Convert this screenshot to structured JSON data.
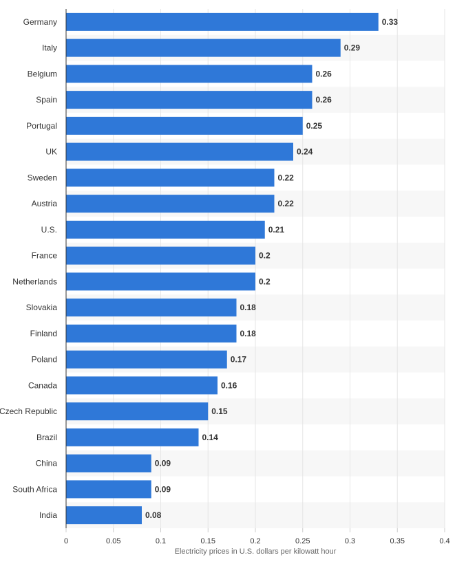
{
  "chart_data": {
    "type": "bar",
    "orientation": "horizontal",
    "categories": [
      "Germany",
      "Italy",
      "Belgium",
      "Spain",
      "Portugal",
      "UK",
      "Sweden",
      "Austria",
      "U.S.",
      "France",
      "Netherlands",
      "Slovakia",
      "Finland",
      "Poland",
      "Canada",
      "Czech Republic",
      "Brazil",
      "China",
      "South Africa",
      "India"
    ],
    "values": [
      0.33,
      0.29,
      0.26,
      0.26,
      0.25,
      0.24,
      0.22,
      0.22,
      0.21,
      0.2,
      0.2,
      0.18,
      0.18,
      0.17,
      0.16,
      0.15,
      0.14,
      0.09,
      0.09,
      0.08
    ],
    "value_labels": [
      "0.33",
      "0.29",
      "0.26",
      "0.26",
      "0.25",
      "0.24",
      "0.22",
      "0.22",
      "0.21",
      "0.2",
      "0.2",
      "0.18",
      "0.18",
      "0.17",
      "0.16",
      "0.15",
      "0.14",
      "0.09",
      "0.09",
      "0.08"
    ],
    "title": "",
    "xlabel": "Electricity prices in U.S. dollars per kilowatt hour",
    "ylabel": "",
    "xlim": [
      0,
      0.4
    ],
    "x_ticks": [
      0,
      0.05,
      0.1,
      0.15,
      0.2,
      0.25,
      0.3,
      0.35,
      0.4
    ],
    "x_tick_labels": [
      "0",
      "0.05",
      "0.1",
      "0.15",
      "0.2",
      "0.25",
      "0.3",
      "0.35",
      "0.4"
    ],
    "grid": "vertical",
    "legend": "none",
    "colors": {
      "bar": "#2f78d8",
      "stripe": "#f7f7f7",
      "grid": "#e6e6e6",
      "axis": "#333333",
      "text": "#333333",
      "axis_title": "#666666"
    }
  }
}
